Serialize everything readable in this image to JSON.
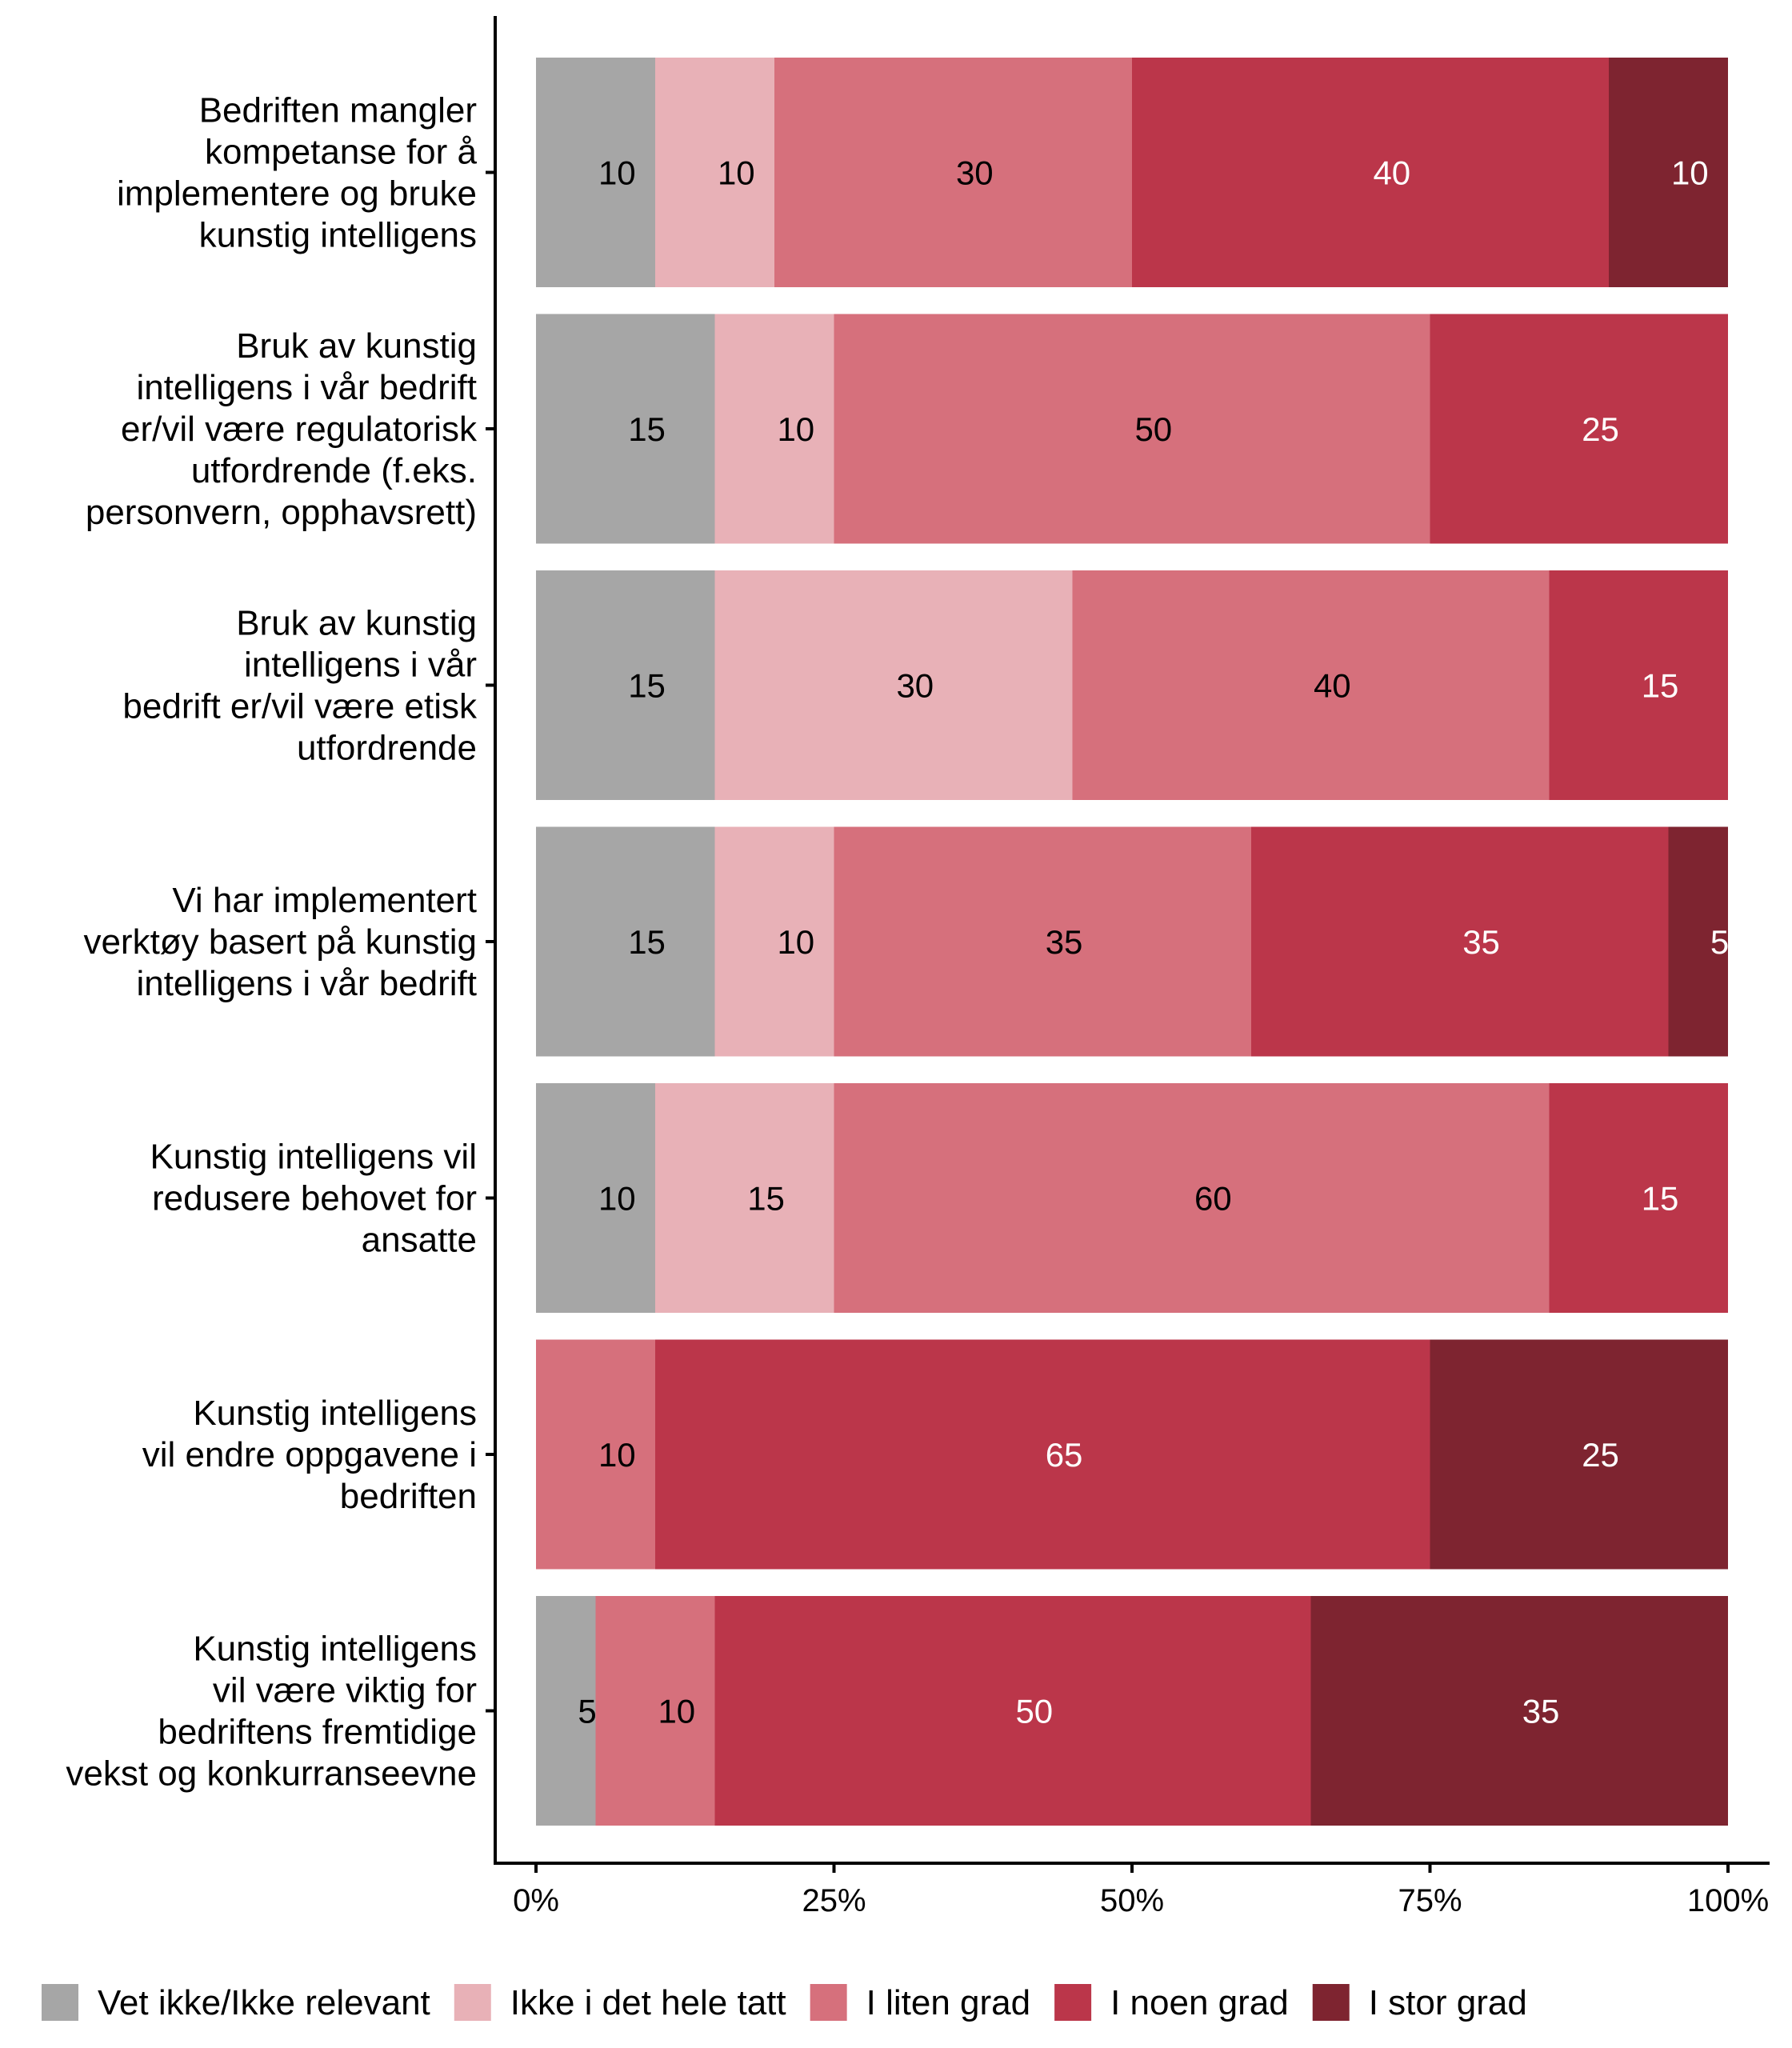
{
  "chart_data": {
    "type": "bar",
    "orientation": "horizontal",
    "stacked": true,
    "title": "",
    "xlabel": "",
    "ylabel": "",
    "xlim": [
      0,
      100
    ],
    "x_ticks": [
      "0%",
      "25%",
      "50%",
      "75%",
      "100%"
    ],
    "x_tick_values": [
      0,
      25,
      50,
      75,
      100
    ],
    "grid": false,
    "legend_position": "bottom",
    "categories": [
      [
        "Bedriften mangler",
        "kompetanse for å",
        "implementere og bruke",
        "kunstig intelligens"
      ],
      [
        "Bruk av kunstig",
        "intelligens i vår bedrift",
        "er/vil være regulatorisk",
        "utfordrende (f.eks.",
        "personvern, opphavsrett)"
      ],
      [
        "Bruk av kunstig",
        "intelligens i vår",
        "bedrift er/vil være etisk",
        "utfordrende"
      ],
      [
        "Vi har implementert",
        "verktøy basert på kunstig",
        "intelligens i vår bedrift"
      ],
      [
        "Kunstig intelligens vil",
        "redusere behovet for",
        "ansatte"
      ],
      [
        "Kunstig intelligens",
        "vil endre oppgavene i",
        "bedriften"
      ],
      [
        "Kunstig intelligens",
        "vil være viktig for",
        "bedriftens fremtidige",
        "vekst og konkurranseevne"
      ]
    ],
    "series": [
      {
        "name": "Vet ikke/Ikke relevant",
        "color": "#a6a6a6",
        "label_color": "#000000",
        "values": [
          10,
          15,
          15,
          15,
          10,
          0,
          5
        ]
      },
      {
        "name": "Ikke i det hele tatt",
        "color": "#e8b1b7",
        "label_color": "#000000",
        "values": [
          10,
          10,
          30,
          10,
          15,
          0,
          0
        ]
      },
      {
        "name": "I liten grad",
        "color": "#d6707c",
        "label_color": "#000000",
        "values": [
          30,
          50,
          40,
          35,
          60,
          10,
          10
        ]
      },
      {
        "name": "I noen grad",
        "color": "#bb364a",
        "label_color": "#ffffff",
        "values": [
          40,
          25,
          15,
          35,
          15,
          65,
          50
        ]
      },
      {
        "name": "I stor grad",
        "color": "#7e2430",
        "label_color": "#ffffff",
        "values": [
          10,
          0,
          0,
          5,
          0,
          25,
          35
        ]
      }
    ]
  }
}
